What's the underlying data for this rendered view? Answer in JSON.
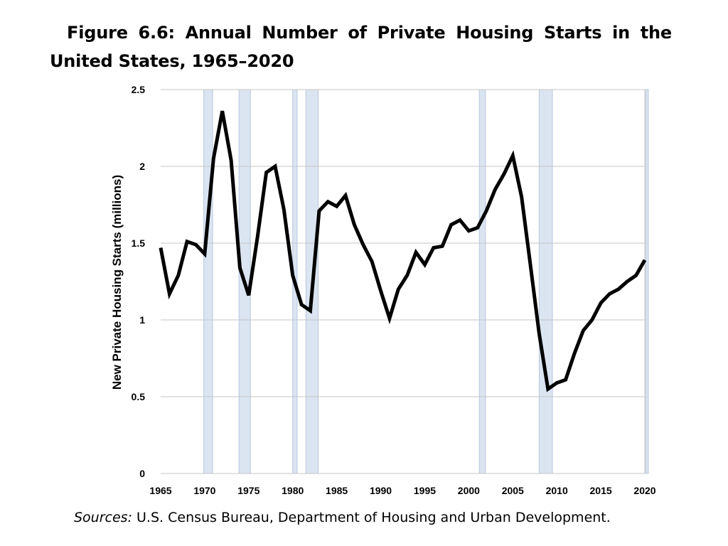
{
  "figure": {
    "title": "Figure 6.6: Annual Number of Private Housing Starts in the United States, 1965–2020",
    "sources_label": "Sources:",
    "sources_text": " U.S. Census Bureau, Department of Housing and Urban Development."
  },
  "chart_data": {
    "type": "line",
    "title": "Figure 6.6: Annual Number of Private Housing Starts in the United States, 1965–2020",
    "xlabel": "",
    "ylabel": "New Private Housing Starts (millions)",
    "xlim": [
      1965,
      2020
    ],
    "ylim": [
      0,
      2.5
    ],
    "grid": true,
    "x_ticks": [
      1965,
      1970,
      1975,
      1980,
      1985,
      1990,
      1995,
      2000,
      2005,
      2010,
      2015,
      2020
    ],
    "y_ticks": [
      0,
      0.5,
      1,
      1.5,
      2,
      2.5
    ],
    "y_tick_labels": [
      "0",
      "0.5",
      "1",
      "1.5",
      "2",
      "2.5"
    ],
    "series": [
      {
        "name": "New Private Housing Starts",
        "color": "#000000",
        "x": [
          1965,
          1966,
          1967,
          1968,
          1969,
          1970,
          1971,
          1972,
          1973,
          1974,
          1975,
          1976,
          1977,
          1978,
          1979,
          1980,
          1981,
          1982,
          1983,
          1984,
          1985,
          1986,
          1987,
          1988,
          1989,
          1990,
          1991,
          1992,
          1993,
          1994,
          1995,
          1996,
          1997,
          1998,
          1999,
          2000,
          2001,
          2002,
          2003,
          2004,
          2005,
          2006,
          2007,
          2008,
          2009,
          2010,
          2011,
          2012,
          2013,
          2014,
          2015,
          2016,
          2017,
          2018,
          2019,
          2020
        ],
        "values": [
          1.47,
          1.17,
          1.29,
          1.51,
          1.49,
          1.43,
          2.05,
          2.36,
          2.04,
          1.34,
          1.16,
          1.54,
          1.96,
          2.0,
          1.72,
          1.29,
          1.1,
          1.06,
          1.71,
          1.77,
          1.74,
          1.81,
          1.62,
          1.49,
          1.38,
          1.19,
          1.01,
          1.2,
          1.29,
          1.44,
          1.36,
          1.47,
          1.48,
          1.62,
          1.65,
          1.58,
          1.6,
          1.71,
          1.85,
          1.95,
          2.07,
          1.8,
          1.36,
          0.91,
          0.55,
          0.59,
          0.61,
          0.78,
          0.93,
          1.0,
          1.11,
          1.17,
          1.2,
          1.25,
          1.29,
          1.39
        ]
      }
    ],
    "recession_bands": [
      {
        "start": 1969.9,
        "end": 1970.9,
        "color": "#dbe4f1"
      },
      {
        "start": 1973.9,
        "end": 1975.2,
        "color": "#dbe4f1"
      },
      {
        "start": 1980.0,
        "end": 1980.5,
        "color": "#dbe4f1"
      },
      {
        "start": 1981.5,
        "end": 1982.9,
        "color": "#dbe4f1"
      },
      {
        "start": 2001.2,
        "end": 2001.9,
        "color": "#dbe4f1"
      },
      {
        "start": 2008.0,
        "end": 2009.5,
        "color": "#dbe4f1"
      },
      {
        "start": 2020.1,
        "end": 2020.4,
        "color": "#dbe4f1"
      }
    ],
    "colors": {
      "line": "#000000",
      "grid": "#c6c6c6",
      "band": "#dbe4f1",
      "band_edge": "#b9c7dd"
    }
  }
}
